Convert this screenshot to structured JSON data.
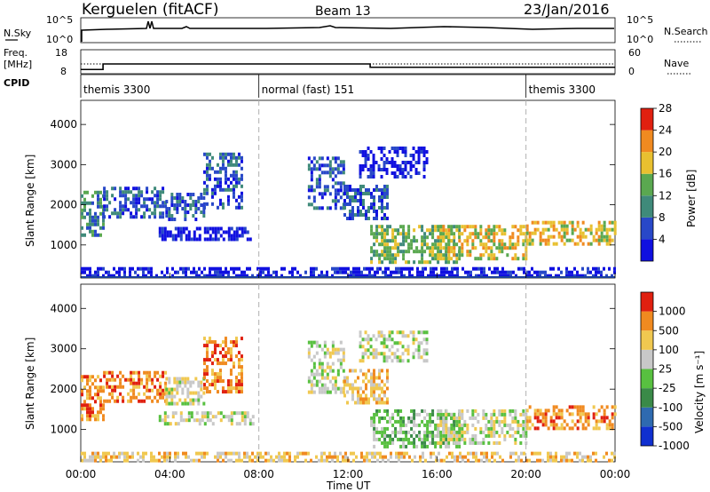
{
  "header": {
    "station": "Kerguelen (fitACF)",
    "beam": "Beam 13",
    "date": "23/Jan/2016"
  },
  "noise_panel": {
    "left_label": "N.Sky",
    "right_label": "N.Search",
    "left_ticks": [
      "10^5",
      "10^0"
    ],
    "right_ticks": [
      "10^5",
      "10^0"
    ]
  },
  "freq_panel": {
    "left_label_1": "Freq.",
    "left_label_2": "[MHz]",
    "right_label": "Nave",
    "left_ticks": [
      "18",
      "8"
    ],
    "right_ticks": [
      "60",
      "0"
    ],
    "frequency_steps": [
      {
        "from_hour": 0.0,
        "to_hour": 1.0,
        "mhz": 9.5
      },
      {
        "from_hour": 1.0,
        "to_hour": 13.0,
        "mhz": 12.0
      },
      {
        "from_hour": 13.0,
        "to_hour": 24.0,
        "mhz": 10.5
      }
    ],
    "nave_level": 24
  },
  "cpid": {
    "label": "CPID",
    "segments": [
      {
        "label": "themis 3300",
        "from_hour": 0.0
      },
      {
        "label": "normal (fast) 151",
        "from_hour": 8.0
      },
      {
        "label": "themis 3300",
        "from_hour": 20.0
      }
    ]
  },
  "time_axis": {
    "label": "Time UT",
    "ticks": [
      "00:00",
      "04:00",
      "08:00",
      "12:00",
      "16:00",
      "20:00",
      "00:00"
    ]
  },
  "chart_data": [
    {
      "type": "heatmap",
      "ylabel": "Slant Range [km]",
      "yticks": [
        "1000",
        "2000",
        "3000",
        "4000"
      ],
      "ylim": [
        200,
        4600
      ],
      "xlim_hours": [
        0,
        24
      ],
      "colorbar_label": "Power [dB]",
      "colorbar_ticks": [
        "4",
        "8",
        "12",
        "16",
        "20",
        "24",
        "28"
      ],
      "colorbar_colors": [
        "#1010e0",
        "#2848c8",
        "#3f8a7a",
        "#5aa850",
        "#e8c030",
        "#f08a20",
        "#e02010"
      ],
      "dashed_lines_hours": [
        8,
        20
      ],
      "regions": [
        {
          "t0": 0.0,
          "t1": 1.0,
          "r0": 1250,
          "r1": 2350,
          "level": 12
        },
        {
          "t0": 1.0,
          "t1": 3.8,
          "r0": 1700,
          "r1": 2450,
          "level": 11
        },
        {
          "t0": 3.8,
          "t1": 5.5,
          "r0": 1600,
          "r1": 2300,
          "level": 8
        },
        {
          "t0": 5.5,
          "t1": 7.2,
          "r0": 1900,
          "r1": 3300,
          "level": 10
        },
        {
          "t0": 3.5,
          "t1": 7.8,
          "r0": 1100,
          "r1": 1450,
          "level": 5
        },
        {
          "t0": 10.2,
          "t1": 11.8,
          "r0": 1900,
          "r1": 3200,
          "level": 9
        },
        {
          "t0": 11.8,
          "t1": 13.8,
          "r0": 1700,
          "r1": 2500,
          "level": 10
        },
        {
          "t0": 12.5,
          "t1": 15.5,
          "r0": 2700,
          "r1": 3450,
          "level": 5
        },
        {
          "t0": 13.0,
          "t1": 17.0,
          "r0": 600,
          "r1": 1500,
          "level": 16
        },
        {
          "t0": 16.0,
          "t1": 20.0,
          "r0": 700,
          "r1": 1500,
          "level": 22
        },
        {
          "t0": 20.0,
          "t1": 24.0,
          "r0": 1000,
          "r1": 1600,
          "level": 23
        },
        {
          "t0": 0.0,
          "t1": 24.0,
          "r0": 250,
          "r1": 450,
          "level": 6
        }
      ]
    },
    {
      "type": "heatmap",
      "ylabel": "Slant Range [km]",
      "yticks": [
        "1000",
        "2000",
        "3000",
        "4000"
      ],
      "ylim": [
        200,
        4600
      ],
      "xlim_hours": [
        0,
        24
      ],
      "colorbar_label": "Velocity [m s⁻¹]",
      "colorbar_ticks": [
        "1000",
        "500",
        "100",
        "25",
        "-25",
        "-100",
        "-500",
        "-1000"
      ],
      "colorbar_colors": [
        "#1030d0",
        "#2e6ab0",
        "#3a8a48",
        "#58c040",
        "#c8c8c8",
        "#f0c850",
        "#f08a20",
        "#e02010"
      ],
      "dashed_lines_hours": [
        8,
        20
      ],
      "regions": [
        {
          "t0": 0.0,
          "t1": 1.0,
          "r0": 1250,
          "r1": 2350,
          "color_index": 6
        },
        {
          "t0": 1.0,
          "t1": 3.8,
          "r0": 1700,
          "r1": 2450,
          "color_index": 6
        },
        {
          "t0": 3.8,
          "t1": 5.5,
          "r0": 1600,
          "r1": 2300,
          "color_index": 4
        },
        {
          "t0": 5.5,
          "t1": 7.2,
          "r0": 1900,
          "r1": 3300,
          "color_index": 6
        },
        {
          "t0": 3.5,
          "t1": 7.8,
          "r0": 1100,
          "r1": 1450,
          "color_index": 4
        },
        {
          "t0": 10.2,
          "t1": 11.8,
          "r0": 1900,
          "r1": 3200,
          "color_index": 4
        },
        {
          "t0": 11.8,
          "t1": 13.8,
          "r0": 1700,
          "r1": 2500,
          "color_index": 5
        },
        {
          "t0": 12.5,
          "t1": 15.5,
          "r0": 2700,
          "r1": 3450,
          "color_index": 4
        },
        {
          "t0": 13.0,
          "t1": 17.0,
          "r0": 600,
          "r1": 1500,
          "color_index": 3
        },
        {
          "t0": 16.0,
          "t1": 20.0,
          "r0": 700,
          "r1": 1500,
          "color_index": 4
        },
        {
          "t0": 20.0,
          "t1": 24.0,
          "r0": 1000,
          "r1": 1600,
          "color_index": 6
        },
        {
          "t0": 0.0,
          "t1": 24.0,
          "r0": 250,
          "r1": 450,
          "color_index": 5
        }
      ]
    }
  ]
}
